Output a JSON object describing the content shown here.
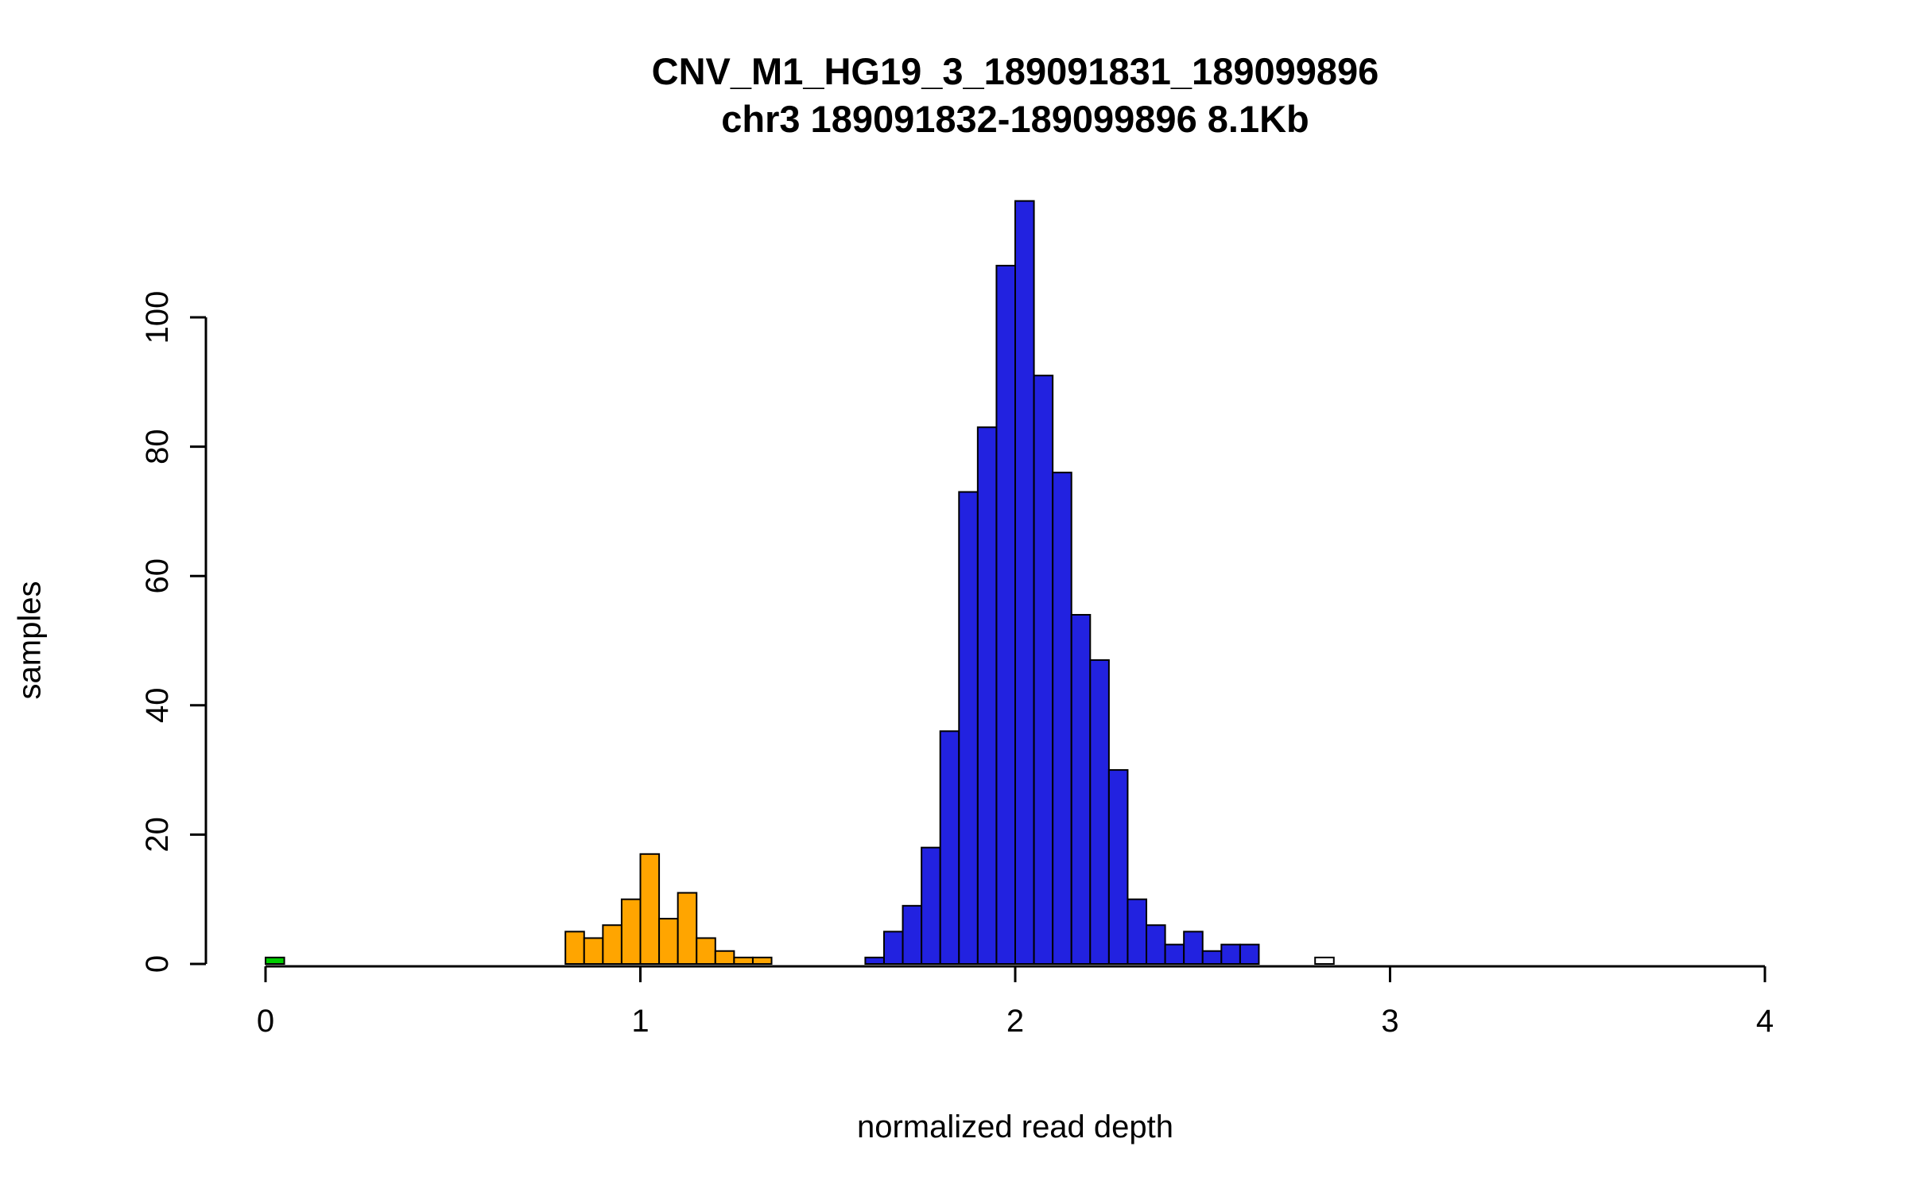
{
  "chart": {
    "title": "CNV_M1_HG19_3_189091831_189099896",
    "subtitle": "chr3 189091832-189099896 8.1Kb",
    "xlabel": "normalized read depth",
    "ylabel": "samples"
  },
  "chart_data": {
    "type": "bar",
    "title": "CNV_M1_HG19_3_189091831_189099896",
    "subtitle": "chr3 189091832-189099896 8.1Kb",
    "xlabel": "normalized read depth",
    "ylabel": "samples",
    "xlim": [
      0,
      4
    ],
    "ylim": [
      0,
      118
    ],
    "x_ticks": [
      0,
      1,
      2,
      3,
      4
    ],
    "y_ticks": [
      0,
      20,
      40,
      60,
      80,
      100
    ],
    "bin_width": 0.05,
    "grid": false,
    "legend": "none",
    "axis_color": "#000000",
    "bar_outline": "#000000",
    "series": [
      {
        "name": "green-bars",
        "color": "#00CD00",
        "bins": [
          [
            0.0,
            1
          ]
        ]
      },
      {
        "name": "orange-bars",
        "color": "#FFA500",
        "bins": [
          [
            0.8,
            5
          ],
          [
            0.85,
            4
          ],
          [
            0.9,
            6
          ],
          [
            0.95,
            10
          ],
          [
            1.0,
            17
          ],
          [
            1.05,
            7
          ],
          [
            1.1,
            11
          ],
          [
            1.15,
            4
          ],
          [
            1.2,
            2
          ],
          [
            1.25,
            1
          ],
          [
            1.3,
            1
          ]
        ]
      },
      {
        "name": "blue-bars",
        "color": "#2222E0",
        "bins": [
          [
            1.6,
            1
          ],
          [
            1.65,
            5
          ],
          [
            1.7,
            9
          ],
          [
            1.75,
            18
          ],
          [
            1.8,
            36
          ],
          [
            1.85,
            73
          ],
          [
            1.9,
            83
          ],
          [
            1.95,
            108
          ],
          [
            2.0,
            118
          ],
          [
            2.05,
            91
          ],
          [
            2.1,
            76
          ],
          [
            2.15,
            54
          ],
          [
            2.2,
            47
          ],
          [
            2.25,
            30
          ],
          [
            2.3,
            10
          ],
          [
            2.35,
            6
          ],
          [
            2.4,
            3
          ],
          [
            2.45,
            5
          ],
          [
            2.5,
            2
          ],
          [
            2.55,
            3
          ],
          [
            2.6,
            3
          ]
        ]
      },
      {
        "name": "white-bars",
        "color": "#FFFFFF",
        "bins": [
          [
            2.8,
            1
          ]
        ]
      }
    ]
  }
}
